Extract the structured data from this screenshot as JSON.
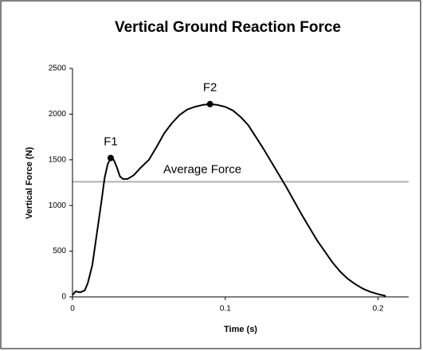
{
  "chart_data": {
    "type": "line",
    "title": "Vertical Ground Reaction Force",
    "xlabel": "Time (s)",
    "ylabel": "Vertical Force (N)",
    "xlim": [
      0,
      0.22
    ],
    "xticks": [
      0,
      0.1,
      0.2
    ],
    "ylim": [
      0,
      2500
    ],
    "yticks": [
      0,
      500,
      1000,
      1500,
      2000,
      2500
    ],
    "series": [
      {
        "name": "Force",
        "color": "#000000",
        "x": [
          0,
          0.002,
          0.005,
          0.008,
          0.01,
          0.013,
          0.016,
          0.019,
          0.021,
          0.023,
          0.025,
          0.027,
          0.029,
          0.031,
          0.033,
          0.036,
          0.04,
          0.045,
          0.05,
          0.055,
          0.06,
          0.065,
          0.07,
          0.075,
          0.08,
          0.085,
          0.09,
          0.095,
          0.1,
          0.105,
          0.11,
          0.115,
          0.12,
          0.125,
          0.13,
          0.135,
          0.14,
          0.145,
          0.15,
          0.155,
          0.16,
          0.165,
          0.17,
          0.175,
          0.18,
          0.185,
          0.19,
          0.195,
          0.2,
          0.205
        ],
        "values": [
          20,
          60,
          50,
          70,
          150,
          350,
          700,
          1050,
          1300,
          1450,
          1520,
          1500,
          1420,
          1320,
          1290,
          1290,
          1330,
          1420,
          1500,
          1640,
          1790,
          1900,
          1990,
          2050,
          2080,
          2100,
          2110,
          2100,
          2080,
          2040,
          1970,
          1880,
          1750,
          1620,
          1480,
          1340,
          1200,
          1050,
          900,
          760,
          620,
          500,
          380,
          280,
          200,
          140,
          90,
          55,
          30,
          10
        ]
      }
    ],
    "points": [
      {
        "label": "F1",
        "x": 0.025,
        "y": 1520
      },
      {
        "label": "F2",
        "x": 0.09,
        "y": 2110
      }
    ],
    "reference_line": {
      "label": "Average Force",
      "value": 1260,
      "color": "#b0b0b0"
    }
  }
}
